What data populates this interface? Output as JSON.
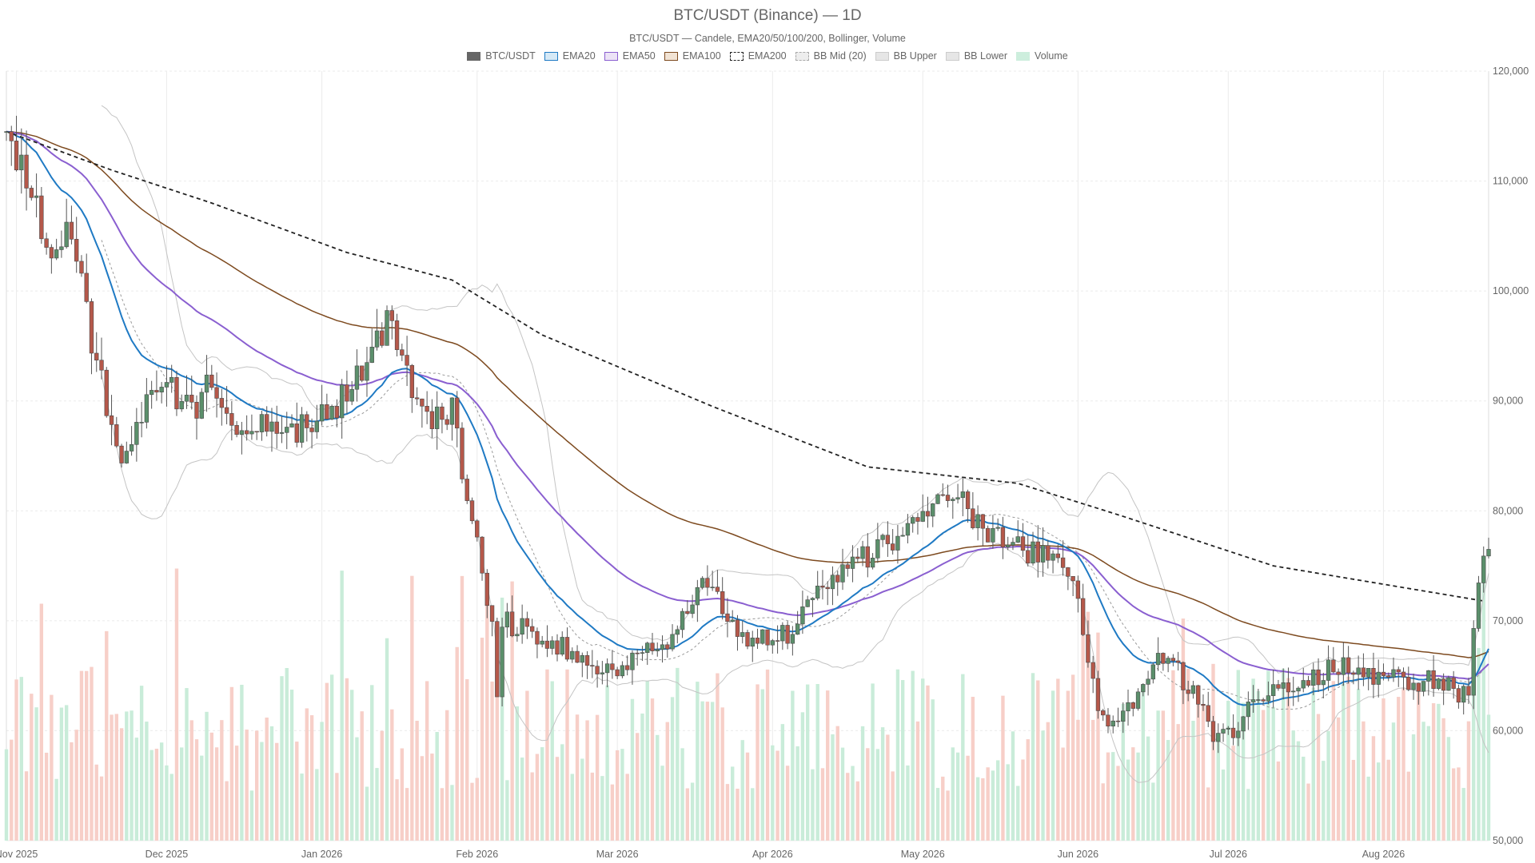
{
  "chart_data": {
    "type": "candlestick",
    "title": "BTC/USDT (Binance) — 1D",
    "subtitle": "BTC/USDT — Candele, EMA20/50/100/200, Bollinger, Volume",
    "legend_position": "top-center",
    "grid": true,
    "legend": [
      {
        "label": "BTC/USDT",
        "fill": "#666666",
        "stroke": "#666666",
        "dash": false
      },
      {
        "label": "EMA20",
        "fill": "#d6e9f6",
        "stroke": "#1f7ac4",
        "dash": false
      },
      {
        "label": "EMA50",
        "fill": "#ece3f6",
        "stroke": "#8a5fd0",
        "dash": false
      },
      {
        "label": "EMA100",
        "fill": "#f1e3d4",
        "stroke": "#7d4a1f",
        "dash": false
      },
      {
        "label": "EMA200",
        "fill": "#ffffff",
        "stroke": "#222222",
        "dash": true
      },
      {
        "label": "BB Mid (20)",
        "fill": "#ededed",
        "stroke": "#aaaaaa",
        "dash": true
      },
      {
        "label": "BB Upper",
        "fill": "#e6e6e6",
        "stroke": "#cccccc",
        "dash": false
      },
      {
        "label": "BB Lower",
        "fill": "#e6e6e6",
        "stroke": "#cccccc",
        "dash": false
      },
      {
        "label": "Volume",
        "fill": "#cdeedd",
        "stroke": "#cdeedd",
        "dash": false
      }
    ],
    "x_axis": {
      "type": "date",
      "range": [
        "2025-10-30",
        "2026-08-22"
      ],
      "ticks": [
        {
          "date": "2025-11-01",
          "label": "Nov 2025"
        },
        {
          "date": "2025-12-01",
          "label": "Dec 2025"
        },
        {
          "date": "2026-01-01",
          "label": "Jan 2026"
        },
        {
          "date": "2026-02-01",
          "label": "Feb 2026"
        },
        {
          "date": "2026-03-01",
          "label": "Mar 2026"
        },
        {
          "date": "2026-04-01",
          "label": "Apr 2026"
        },
        {
          "date": "2026-05-01",
          "label": "May 2026"
        },
        {
          "date": "2026-06-01",
          "label": "Jun 2026"
        },
        {
          "date": "2026-07-01",
          "label": "Jul 2026"
        },
        {
          "date": "2026-08-01",
          "label": "Aug 2026"
        }
      ]
    },
    "y_axis": {
      "position": "right",
      "range": [
        50000,
        120000
      ],
      "ticks": [
        {
          "value": 50000,
          "label": "50,000"
        },
        {
          "value": 60000,
          "label": "60,000"
        },
        {
          "value": 70000,
          "label": "70,000"
        },
        {
          "value": 80000,
          "label": "80,000"
        },
        {
          "value": 90000,
          "label": "90,000"
        },
        {
          "value": 100000,
          "label": "100,000"
        },
        {
          "value": 110000,
          "label": "110,000"
        },
        {
          "value": 120000,
          "label": "120,000"
        }
      ]
    },
    "colors": {
      "up": "#5b8f6b",
      "down": "#b5584a",
      "volume_up": "#c9ecd9",
      "volume_down": "#f7cfc8",
      "grid": "#ebebeb",
      "ema20": "#1f7ac4",
      "ema50": "#8a5fd0",
      "ema100": "#7d4a1f",
      "ema200": "#222222",
      "bb": "#c4c4c4"
    },
    "price_path": [
      {
        "date": "2025-10-30",
        "close": 114500
      },
      {
        "date": "2025-11-04",
        "close": 109000
      },
      {
        "date": "2025-11-08",
        "close": 102000
      },
      {
        "date": "2025-11-12",
        "close": 106000
      },
      {
        "date": "2025-11-16",
        "close": 95000
      },
      {
        "date": "2025-11-20",
        "close": 88000
      },
      {
        "date": "2025-11-22",
        "close": 85000
      },
      {
        "date": "2025-11-26",
        "close": 89000
      },
      {
        "date": "2025-12-02",
        "close": 91000
      },
      {
        "date": "2025-12-06",
        "close": 89000
      },
      {
        "date": "2025-12-10",
        "close": 92000
      },
      {
        "date": "2025-12-16",
        "close": 87500
      },
      {
        "date": "2025-12-20",
        "close": 88000
      },
      {
        "date": "2025-12-27",
        "close": 87500
      },
      {
        "date": "2026-01-04",
        "close": 89500
      },
      {
        "date": "2026-01-08",
        "close": 92500
      },
      {
        "date": "2026-01-14",
        "close": 97000
      },
      {
        "date": "2026-01-16",
        "close": 95000
      },
      {
        "date": "2026-01-21",
        "close": 88500
      },
      {
        "date": "2026-01-27",
        "close": 89000
      },
      {
        "date": "2026-01-31",
        "close": 79000
      },
      {
        "date": "2026-02-04",
        "close": 70000
      },
      {
        "date": "2026-02-05",
        "close": 63000
      },
      {
        "date": "2026-02-06",
        "close": 70000
      },
      {
        "date": "2026-02-14",
        "close": 68500
      },
      {
        "date": "2026-02-22",
        "close": 66500
      },
      {
        "date": "2026-02-28",
        "close": 65000
      },
      {
        "date": "2026-03-06",
        "close": 67000
      },
      {
        "date": "2026-03-11",
        "close": 67000
      },
      {
        "date": "2026-03-18",
        "close": 74500
      },
      {
        "date": "2026-03-27",
        "close": 68000
      },
      {
        "date": "2026-04-05",
        "close": 69000
      },
      {
        "date": "2026-04-11",
        "close": 73000
      },
      {
        "date": "2026-04-20",
        "close": 76000
      },
      {
        "date": "2026-04-27",
        "close": 78000
      },
      {
        "date": "2026-05-07",
        "close": 82000
      },
      {
        "date": "2026-05-12",
        "close": 79000
      },
      {
        "date": "2026-05-17",
        "close": 77000
      },
      {
        "date": "2026-05-27",
        "close": 75500
      },
      {
        "date": "2026-05-31",
        "close": 73500
      },
      {
        "date": "2026-06-03",
        "close": 66000
      },
      {
        "date": "2026-06-06",
        "close": 61000
      },
      {
        "date": "2026-06-12",
        "close": 62500
      },
      {
        "date": "2026-06-18",
        "close": 67000
      },
      {
        "date": "2026-06-24",
        "close": 63500
      },
      {
        "date": "2026-06-28",
        "close": 59500
      },
      {
        "date": "2026-07-02",
        "close": 60000
      },
      {
        "date": "2026-07-08",
        "close": 63500
      },
      {
        "date": "2026-07-15",
        "close": 64000
      },
      {
        "date": "2026-07-22",
        "close": 66000
      },
      {
        "date": "2026-07-30",
        "close": 65000
      },
      {
        "date": "2026-08-06",
        "close": 64500
      },
      {
        "date": "2026-08-12",
        "close": 64500
      },
      {
        "date": "2026-08-18",
        "close": 63000
      },
      {
        "date": "2026-08-19",
        "close": 69500
      },
      {
        "date": "2026-08-21",
        "close": 76500
      }
    ],
    "ema200": [
      {
        "date": "2025-10-30",
        "value": 114500
      },
      {
        "date": "2025-11-20",
        "value": 111000
      },
      {
        "date": "2025-12-10",
        "value": 108000
      },
      {
        "date": "2026-01-06",
        "value": 103500
      },
      {
        "date": "2026-01-27",
        "value": 101000
      },
      {
        "date": "2026-02-14",
        "value": 96000
      },
      {
        "date": "2026-03-20",
        "value": 89500
      },
      {
        "date": "2026-04-20",
        "value": 84000
      },
      {
        "date": "2026-05-20",
        "value": 82500
      },
      {
        "date": "2026-06-10",
        "value": 79500
      },
      {
        "date": "2026-07-10",
        "value": 75000
      },
      {
        "date": "2026-08-21",
        "value": 71800
      }
    ]
  }
}
